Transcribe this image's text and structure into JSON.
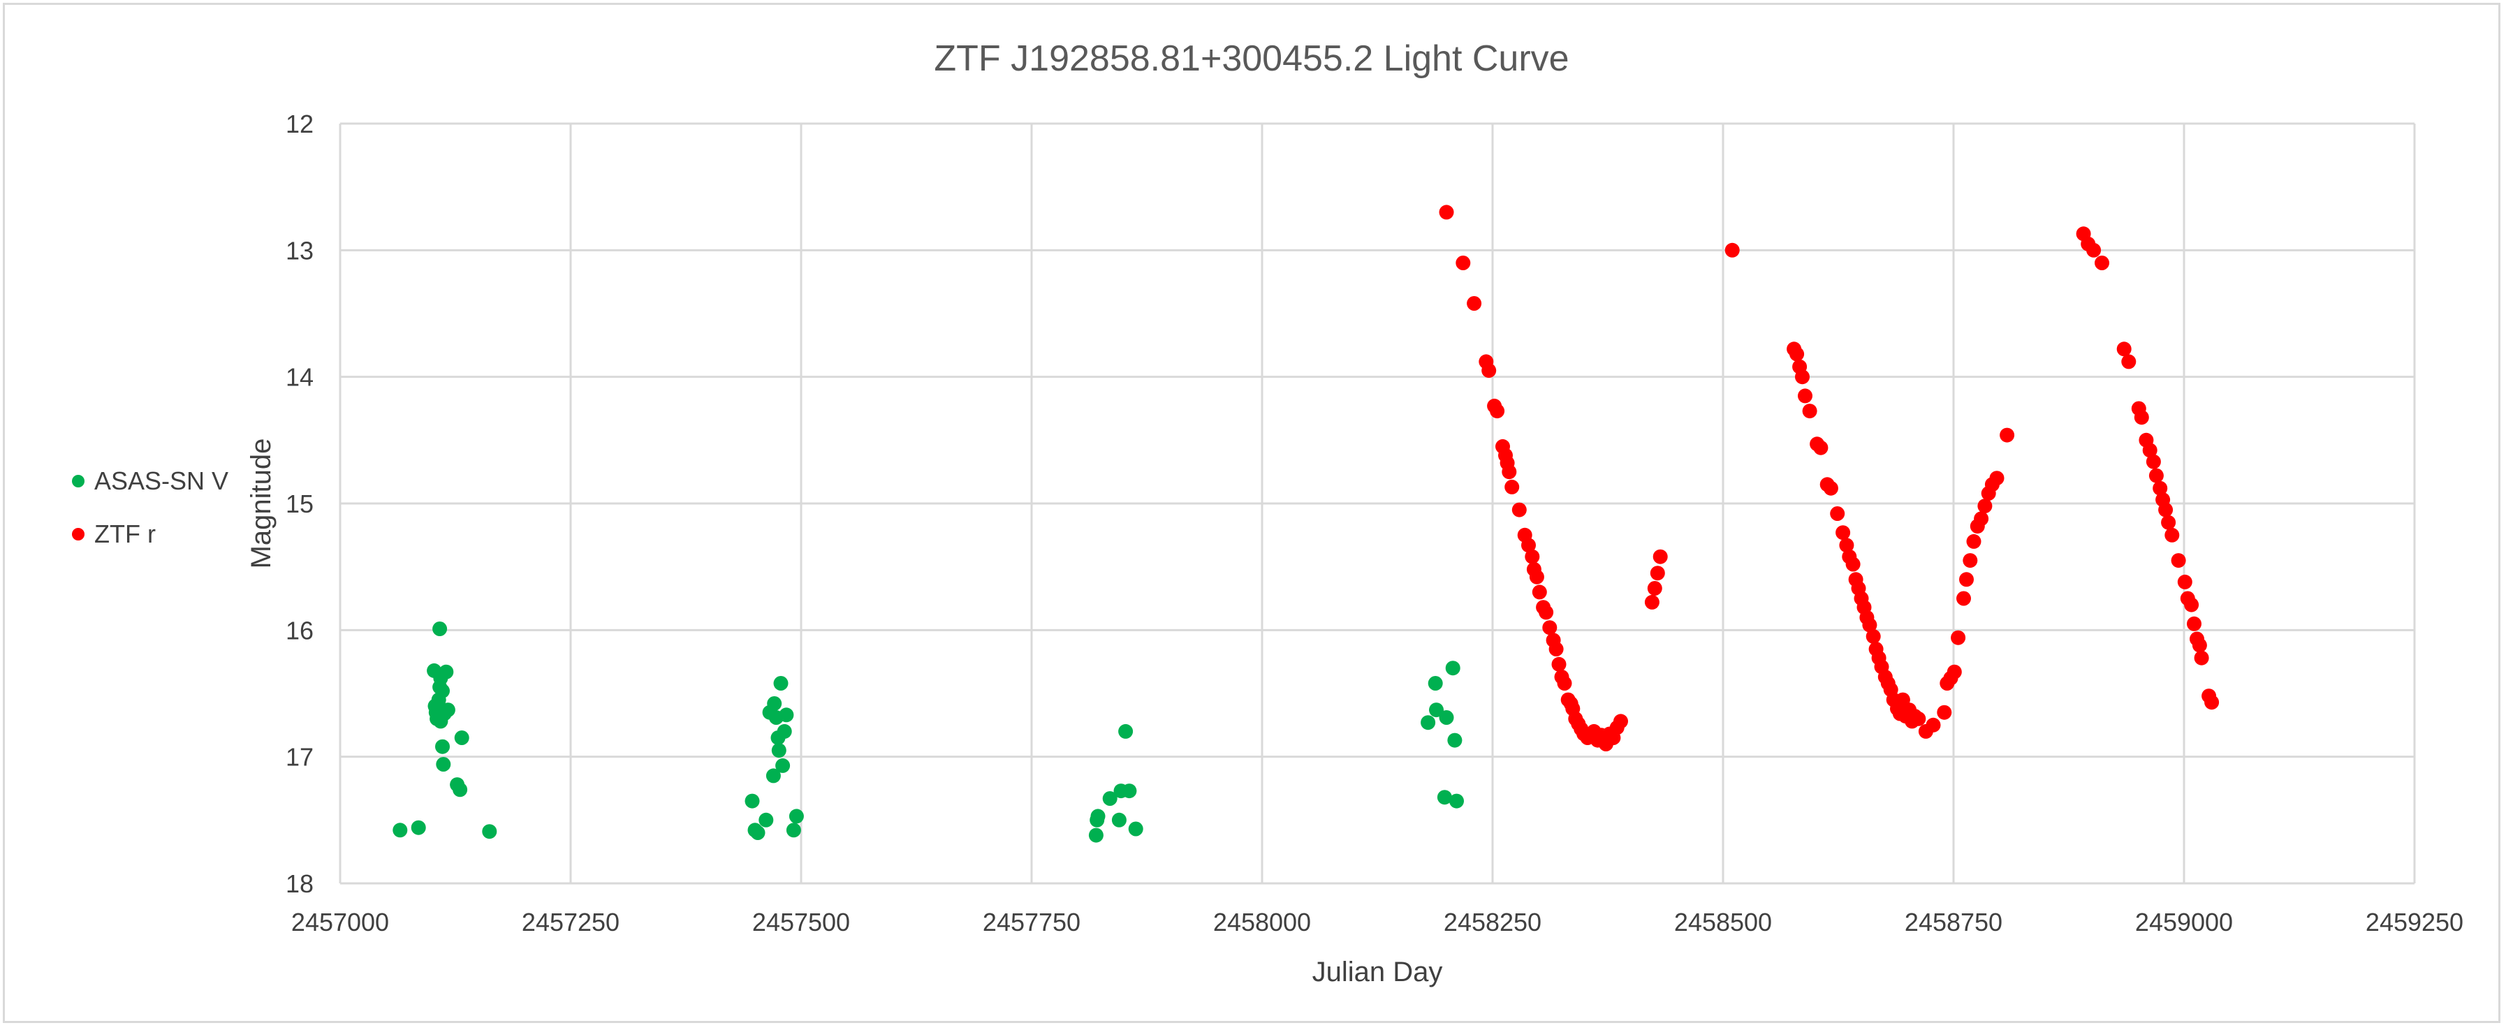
{
  "chart_data": {
    "type": "scatter",
    "title": "ZTF J192858.81+300455.2 Light Curve",
    "xlabel": "Julian Day",
    "ylabel": "Magnitude",
    "xlim": [
      2457000,
      2459250
    ],
    "ylim": [
      12,
      18
    ],
    "y_inverted": true,
    "x_ticks": [
      2457000,
      2457250,
      2457500,
      2457750,
      2458000,
      2458250,
      2458500,
      2458750,
      2459000,
      2459250
    ],
    "y_ticks": [
      12,
      13,
      14,
      15,
      16,
      17,
      18
    ],
    "grid": true,
    "legend_position": "left",
    "series": [
      {
        "name": "ASAS-SN V",
        "color": "#00b050",
        "points": [
          [
            2457065,
            17.58
          ],
          [
            2457085,
            17.56
          ],
          [
            2457102,
            16.32
          ],
          [
            2457103,
            16.6
          ],
          [
            2457104,
            16.65
          ],
          [
            2457105,
            16.7
          ],
          [
            2457106,
            16.62
          ],
          [
            2457107,
            16.55
          ],
          [
            2457108,
            16.45
          ],
          [
            2457108,
            15.99
          ],
          [
            2457109,
            16.72
          ],
          [
            2457109,
            16.38
          ],
          [
            2457110,
            16.68
          ],
          [
            2457111,
            16.48
          ],
          [
            2457111,
            16.92
          ],
          [
            2457112,
            17.06
          ],
          [
            2457113,
            16.66
          ],
          [
            2457115,
            16.33
          ],
          [
            2457117,
            16.63
          ],
          [
            2457127,
            17.22
          ],
          [
            2457130,
            17.26
          ],
          [
            2457132,
            16.85
          ],
          [
            2457162,
            17.59
          ],
          [
            2457447,
            17.35
          ],
          [
            2457450,
            17.58
          ],
          [
            2457453,
            17.6
          ],
          [
            2457462,
            17.5
          ],
          [
            2457466,
            16.65
          ],
          [
            2457470,
            17.15
          ],
          [
            2457471,
            16.58
          ],
          [
            2457473,
            16.69
          ],
          [
            2457475,
            16.85
          ],
          [
            2457476,
            16.95
          ],
          [
            2457478,
            16.42
          ],
          [
            2457480,
            17.07
          ],
          [
            2457482,
            16.8
          ],
          [
            2457484,
            16.67
          ],
          [
            2457492,
            17.58
          ],
          [
            2457495,
            17.47
          ],
          [
            2457820,
            17.62
          ],
          [
            2457821,
            17.5
          ],
          [
            2457822,
            17.47
          ],
          [
            2457835,
            17.33
          ],
          [
            2457845,
            17.5
          ],
          [
            2457847,
            17.27
          ],
          [
            2457852,
            16.8
          ],
          [
            2457856,
            17.27
          ],
          [
            2457863,
            17.57
          ],
          [
            2458180,
            16.73
          ],
          [
            2458188,
            16.42
          ],
          [
            2458189,
            16.63
          ],
          [
            2458198,
            17.32
          ],
          [
            2458200,
            16.69
          ],
          [
            2458207,
            16.3
          ],
          [
            2458209,
            16.87
          ],
          [
            2458211,
            17.35
          ]
        ]
      },
      {
        "name": "ZTF r",
        "color": "#ff0000",
        "points": [
          [
            2458200,
            12.7
          ],
          [
            2458218,
            13.1
          ],
          [
            2458230,
            13.42
          ],
          [
            2458243,
            13.88
          ],
          [
            2458246,
            13.95
          ],
          [
            2458252,
            14.23
          ],
          [
            2458255,
            14.27
          ],
          [
            2458261,
            14.55
          ],
          [
            2458264,
            14.62
          ],
          [
            2458266,
            14.68
          ],
          [
            2458268,
            14.75
          ],
          [
            2458271,
            14.87
          ],
          [
            2458279,
            15.05
          ],
          [
            2458285,
            15.25
          ],
          [
            2458289,
            15.33
          ],
          [
            2458293,
            15.42
          ],
          [
            2458295,
            15.52
          ],
          [
            2458298,
            15.58
          ],
          [
            2458301,
            15.7
          ],
          [
            2458305,
            15.82
          ],
          [
            2458308,
            15.86
          ],
          [
            2458312,
            15.98
          ],
          [
            2458316,
            16.08
          ],
          [
            2458319,
            16.15
          ],
          [
            2458322,
            16.27
          ],
          [
            2458325,
            16.37
          ],
          [
            2458328,
            16.42
          ],
          [
            2458332,
            16.55
          ],
          [
            2458335,
            16.58
          ],
          [
            2458337,
            16.62
          ],
          [
            2458340,
            16.7
          ],
          [
            2458343,
            16.74
          ],
          [
            2458346,
            16.78
          ],
          [
            2458349,
            16.82
          ],
          [
            2458353,
            16.85
          ],
          [
            2458357,
            16.84
          ],
          [
            2458360,
            16.8
          ],
          [
            2458364,
            16.87
          ],
          [
            2458368,
            16.83
          ],
          [
            2458373,
            16.9
          ],
          [
            2458377,
            16.82
          ],
          [
            2458381,
            16.85
          ],
          [
            2458385,
            16.77
          ],
          [
            2458389,
            16.72
          ],
          [
            2458423,
            15.78
          ],
          [
            2458426,
            15.67
          ],
          [
            2458429,
            15.55
          ],
          [
            2458432,
            15.42
          ],
          [
            2458510,
            13.0
          ],
          [
            2458577,
            13.78
          ],
          [
            2458580,
            13.82
          ],
          [
            2458583,
            13.92
          ],
          [
            2458586,
            14.0
          ],
          [
            2458589,
            14.15
          ],
          [
            2458594,
            14.27
          ],
          [
            2458602,
            14.53
          ],
          [
            2458606,
            14.56
          ],
          [
            2458613,
            14.85
          ],
          [
            2458617,
            14.88
          ],
          [
            2458624,
            15.08
          ],
          [
            2458630,
            15.23
          ],
          [
            2458634,
            15.33
          ],
          [
            2458637,
            15.42
          ],
          [
            2458641,
            15.48
          ],
          [
            2458644,
            15.6
          ],
          [
            2458647,
            15.67
          ],
          [
            2458650,
            15.75
          ],
          [
            2458653,
            15.82
          ],
          [
            2458656,
            15.9
          ],
          [
            2458659,
            15.96
          ],
          [
            2458663,
            16.05
          ],
          [
            2458666,
            16.15
          ],
          [
            2458669,
            16.22
          ],
          [
            2458672,
            16.29
          ],
          [
            2458676,
            16.37
          ],
          [
            2458679,
            16.42
          ],
          [
            2458682,
            16.47
          ],
          [
            2458685,
            16.55
          ],
          [
            2458689,
            16.62
          ],
          [
            2458692,
            16.66
          ],
          [
            2458695,
            16.55
          ],
          [
            2458698,
            16.68
          ],
          [
            2458702,
            16.63
          ],
          [
            2458705,
            16.72
          ],
          [
            2458708,
            16.68
          ],
          [
            2458712,
            16.7
          ],
          [
            2458720,
            16.8
          ],
          [
            2458728,
            16.75
          ],
          [
            2458740,
            16.65
          ],
          [
            2458743,
            16.42
          ],
          [
            2458747,
            16.38
          ],
          [
            2458751,
            16.33
          ],
          [
            2458755,
            16.06
          ],
          [
            2458761,
            15.75
          ],
          [
            2458764,
            15.6
          ],
          [
            2458768,
            15.45
          ],
          [
            2458772,
            15.3
          ],
          [
            2458776,
            15.18
          ],
          [
            2458780,
            15.12
          ],
          [
            2458784,
            15.02
          ],
          [
            2458788,
            14.92
          ],
          [
            2458792,
            14.85
          ],
          [
            2458797,
            14.8
          ],
          [
            2458808,
            14.46
          ],
          [
            2458891,
            12.87
          ],
          [
            2458896,
            12.95
          ],
          [
            2458902,
            13.0
          ],
          [
            2458911,
            13.1
          ],
          [
            2458935,
            13.78
          ],
          [
            2458940,
            13.88
          ],
          [
            2458951,
            14.25
          ],
          [
            2458954,
            14.32
          ],
          [
            2458959,
            14.5
          ],
          [
            2458963,
            14.58
          ],
          [
            2458967,
            14.67
          ],
          [
            2458970,
            14.78
          ],
          [
            2458974,
            14.88
          ],
          [
            2458977,
            14.97
          ],
          [
            2458980,
            15.05
          ],
          [
            2458983,
            15.15
          ],
          [
            2458987,
            15.25
          ],
          [
            2458994,
            15.45
          ],
          [
            2459001,
            15.62
          ],
          [
            2459004,
            15.75
          ],
          [
            2459008,
            15.8
          ],
          [
            2459011,
            15.95
          ],
          [
            2459014,
            16.07
          ],
          [
            2459017,
            16.12
          ],
          [
            2459019,
            16.22
          ],
          [
            2459027,
            16.52
          ],
          [
            2459030,
            16.57
          ]
        ]
      }
    ]
  }
}
